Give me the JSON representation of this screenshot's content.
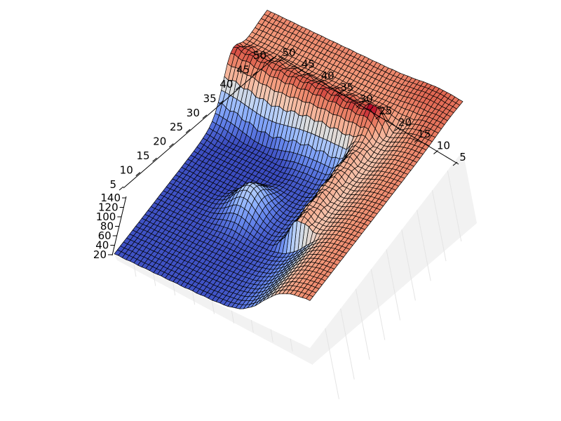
{
  "colors": {
    "low": "#3b4cc0",
    "mid": "#dddddd",
    "high": "#b40426",
    "pane": "#f2f2f2",
    "grid": "#e4e4e4",
    "wire": "#000000"
  },
  "chart_data": {
    "type": "surface",
    "colormap": "coolwarm",
    "title": "",
    "xlabel": "",
    "ylabel": "",
    "zlabel": "",
    "grid": true,
    "xlim": [
      0,
      50
    ],
    "ylim": [
      0,
      50
    ],
    "zlim": [
      20,
      150
    ],
    "x_ticks": [
      "5",
      "10",
      "15",
      "20",
      "25",
      "30",
      "35",
      "40",
      "45",
      "50"
    ],
    "y_ticks": [
      "5",
      "10",
      "15",
      "20",
      "25",
      "30",
      "35",
      "40",
      "45",
      "50"
    ],
    "z_ticks": [
      "20",
      "40",
      "60",
      "80",
      "100",
      "120",
      "140"
    ],
    "grid_size": [
      50,
      50
    ],
    "features": [
      {
        "name": "outer ridge",
        "x_range": [
          0,
          50
        ],
        "y": 50,
        "z": 130
      },
      {
        "name": "outer ridge",
        "x": 50,
        "y_range": [
          0,
          50
        ],
        "z": 130
      },
      {
        "name": "inner wall",
        "x_range": [
          0,
          35
        ],
        "y": 38,
        "z": 85
      },
      {
        "name": "inner wall",
        "x": 35,
        "y_range": [
          15,
          38
        ],
        "z": 85
      },
      {
        "name": "crater",
        "x": 15,
        "y": 30,
        "z": 50
      },
      {
        "name": "mound",
        "x": 18,
        "y": 20,
        "z": 80
      },
      {
        "name": "plateau",
        "x": 42,
        "y": 45,
        "z": 135
      },
      {
        "name": "floor",
        "x_range": [
          0,
          33
        ],
        "y_range": [
          0,
          33
        ],
        "z": 22
      }
    ]
  }
}
